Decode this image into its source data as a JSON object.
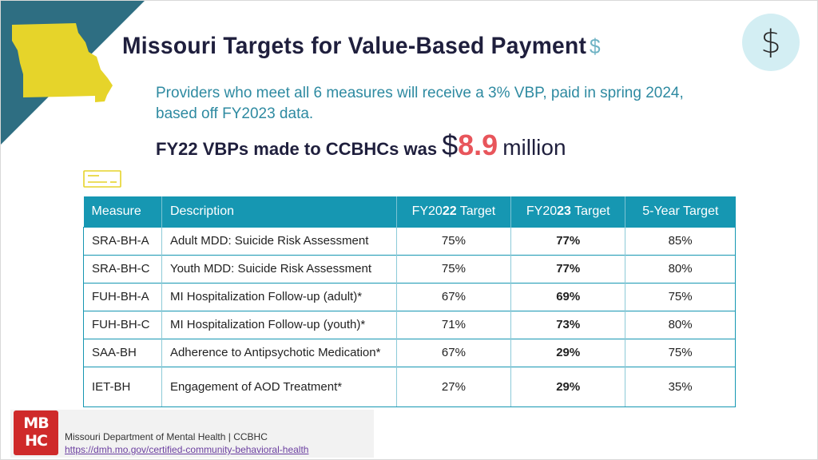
{
  "slide": {
    "title": "Missouri Targets for Value-Based Payment",
    "title_suffix": "$",
    "corner_icon": "dollar-sign-icon",
    "corner_icon_glyph": "$",
    "subtitle": "Providers who meet all 6 measures will receive a 3% VBP, paid in spring 2024, based off FY2023 data.",
    "vbp_lead": "FY22 VBPs made to CCBHCs was",
    "vbp_currency": "$",
    "vbp_amount": "8.9",
    "vbp_unit": "million",
    "colors": {
      "teal": "#1697b2",
      "navy": "#1f1f3d",
      "accent_red": "#e8555b",
      "map_yellow": "#e6d42a",
      "corner_slate": "#2e6e82"
    }
  },
  "table": {
    "headers": {
      "measure": "Measure",
      "description": "Description",
      "fy2022_prefix": "FY20",
      "fy2022_bold": "22",
      "fy2022_suffix": " Target",
      "fy2023_prefix": "FY20",
      "fy2023_bold": "23",
      "fy2023_suffix": " Target",
      "five_year": "5-Year Target"
    },
    "rows": [
      {
        "measure": "SRA-BH-A",
        "description": "Adult MDD: Suicide Risk Assessment",
        "fy2022": "75%",
        "fy2023": "77%",
        "five_year": "85%"
      },
      {
        "measure": "SRA-BH-C",
        "description": "Youth MDD: Suicide Risk Assessment",
        "fy2022": "75%",
        "fy2023": "77%",
        "five_year": "80%"
      },
      {
        "measure": "FUH-BH-A",
        "description": "MI Hospitalization Follow-up (adult)*",
        "fy2022": "67%",
        "fy2023": "69%",
        "five_year": "75%"
      },
      {
        "measure": "FUH-BH-C",
        "description": "MI Hospitalization Follow-up (youth)*",
        "fy2022": "71%",
        "fy2023": "73%",
        "five_year": "80%"
      },
      {
        "measure": "SAA-BH",
        "description": "Adherence to Antipsychotic Medication*",
        "fy2022": "67%",
        "fy2023": "29%",
        "five_year": "75%"
      },
      {
        "measure": "IET-BH",
        "description": "Engagement of AOD Treatment*",
        "fy2022": "27%",
        "fy2023": "29%",
        "five_year": "35%"
      }
    ]
  },
  "footer": {
    "logo_line1": "MB",
    "logo_line2": "HC",
    "org": "Missouri Department of Mental Health | CCBHC",
    "link": "https://dmh.mo.gov/certified-community-behavioral-health"
  }
}
